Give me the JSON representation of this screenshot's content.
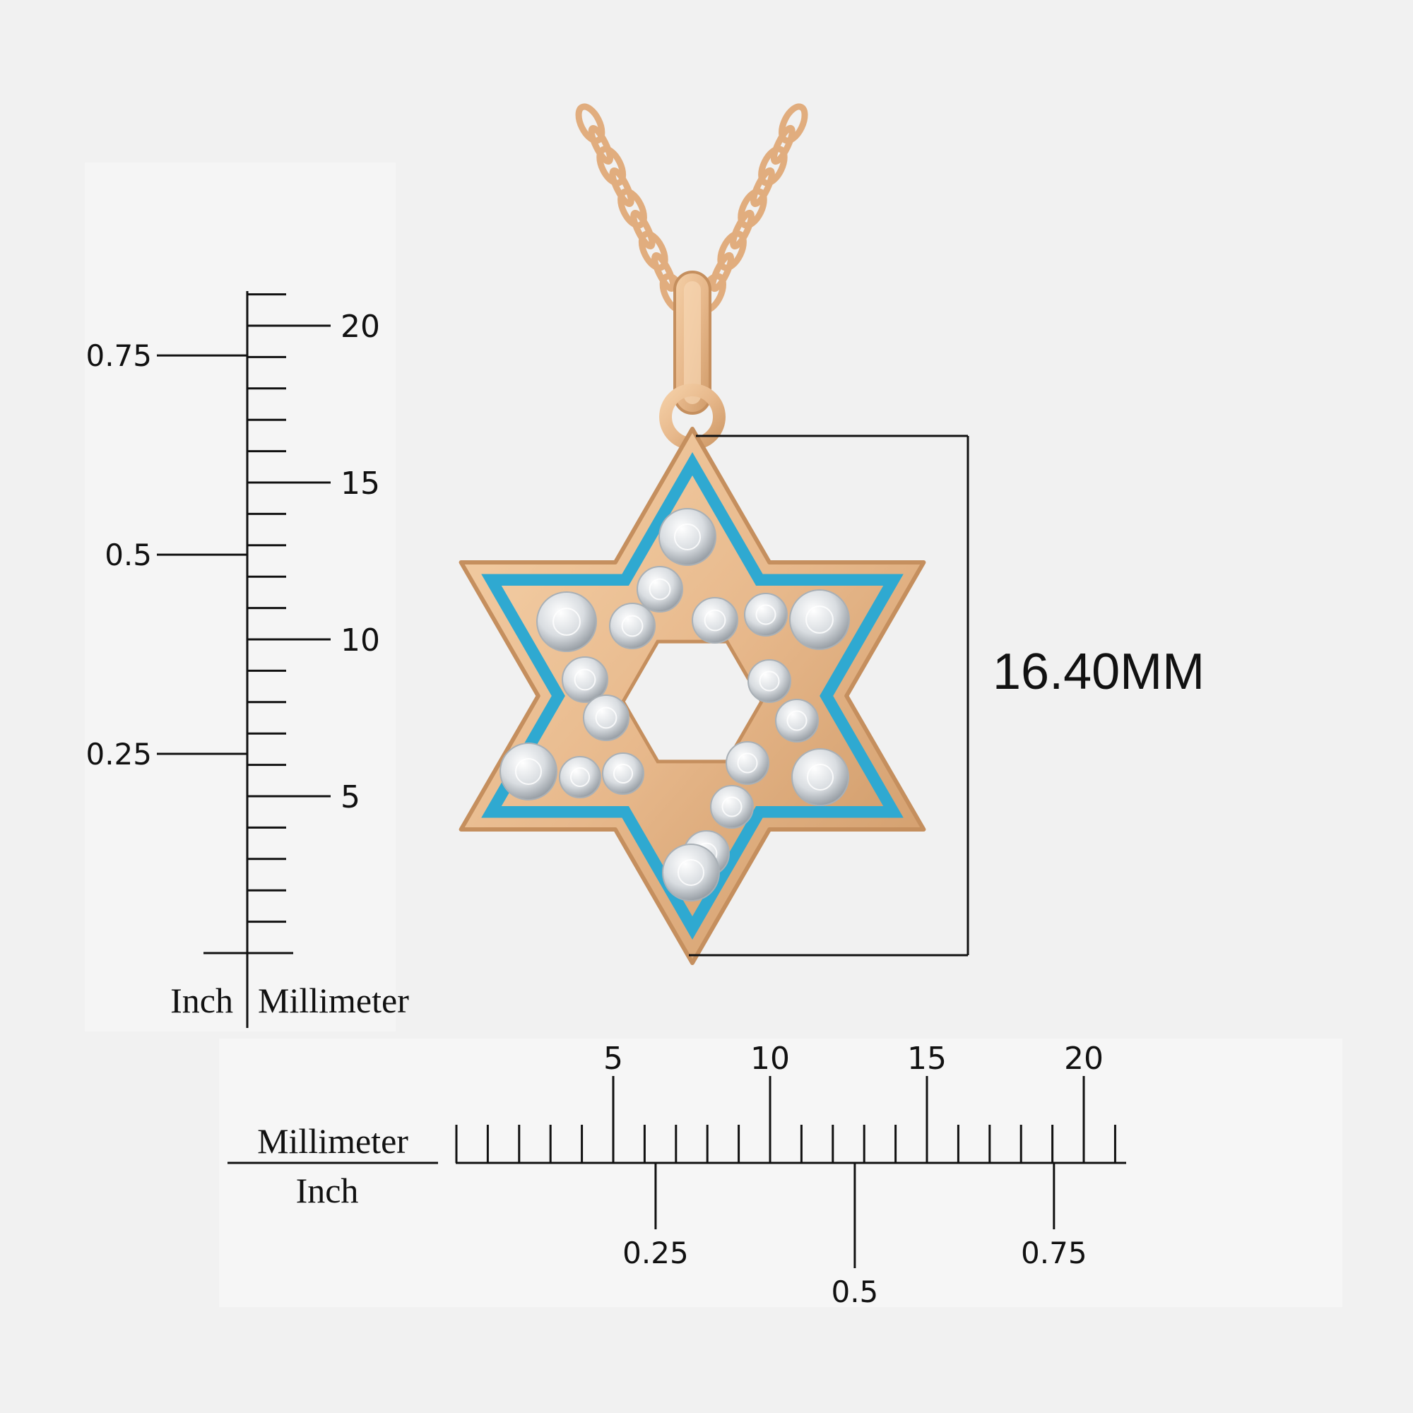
{
  "colors": {
    "background": "#f1f1f1",
    "gold": "#e7b88b",
    "gold_dark": "#c58f5e",
    "enamel": "#2fa9d1",
    "diamond": "#e8eaec",
    "ink": "#111111"
  },
  "vertical_scale": {
    "unit_left": "Inch",
    "unit_right": "Millimeter",
    "mm_labels": [
      {
        "mm": 20,
        "text": "20"
      },
      {
        "mm": 15,
        "text": "15"
      },
      {
        "mm": 10,
        "text": "10"
      },
      {
        "mm": 5,
        "text": "5"
      }
    ],
    "inch_labels": [
      {
        "inch": 0.75,
        "text": "0.75"
      },
      {
        "inch": 0.5,
        "text": "0.5"
      },
      {
        "inch": 0.25,
        "text": "0.25"
      }
    ],
    "mm_range": [
      0,
      21
    ]
  },
  "horizontal_scale": {
    "unit_top": "Millimeter",
    "unit_bottom": "Inch",
    "mm_labels": [
      {
        "mm": 5,
        "text": "5"
      },
      {
        "mm": 10,
        "text": "10"
      },
      {
        "mm": 15,
        "text": "15"
      },
      {
        "mm": 20,
        "text": "20"
      }
    ],
    "inch_labels": [
      {
        "inch": 0.25,
        "text": "0.25"
      },
      {
        "inch": 0.5,
        "text": "0.5"
      },
      {
        "inch": 0.75,
        "text": "0.75"
      }
    ],
    "mm_range": [
      0,
      21
    ]
  },
  "dimension": {
    "label": "16.40MM"
  },
  "pendant": {
    "shape": "star-of-david",
    "metal": "gold",
    "inlay": "blue enamel",
    "stones": "diamonds"
  }
}
